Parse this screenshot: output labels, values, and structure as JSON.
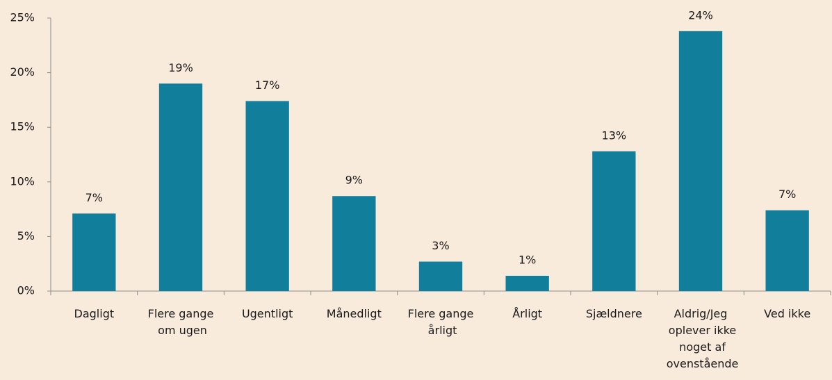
{
  "chart_data": {
    "type": "bar",
    "categories": [
      "Dagligt",
      "Flere gange om ugen",
      "Ugentligt",
      "Månedligt",
      "Flere gange årligt",
      "Årligt",
      "Sjældnere",
      "Aldrig/Jeg oplever ikke noget af ovenstående",
      "Ved ikke"
    ],
    "values": [
      7.1,
      19.0,
      17.4,
      8.7,
      2.7,
      1.4,
      12.8,
      23.8,
      7.4
    ],
    "value_labels": [
      "7%",
      "19%",
      "17%",
      "9%",
      "3%",
      "1%",
      "13%",
      "24%",
      "7%"
    ],
    "color": "#117e9c",
    "ylim": [
      0,
      25
    ],
    "yticks": [
      {
        "value": 0,
        "label": "0%"
      },
      {
        "value": 5,
        "label": "5%"
      },
      {
        "value": 10,
        "label": "10%"
      },
      {
        "value": 15,
        "label": "15%"
      },
      {
        "value": 20,
        "label": "20%"
      },
      {
        "value": 25,
        "label": "25%"
      }
    ],
    "grid": false
  }
}
